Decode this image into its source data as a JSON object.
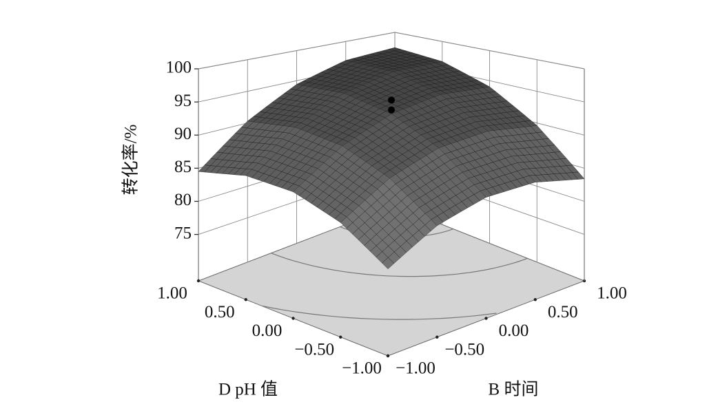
{
  "chart_data": {
    "type": "surface3d",
    "xlabel": "B 时间",
    "ylabel": "D pH 值",
    "zlabel": "转化率/%",
    "xlim": [
      -1,
      1
    ],
    "ylim": [
      -1,
      1
    ],
    "zlim": [
      68,
      100
    ],
    "xticks": [
      {
        "value": -1,
        "label": "−1.00"
      },
      {
        "value": -0.5,
        "label": "−0.50"
      },
      {
        "value": 0,
        "label": "0.00"
      },
      {
        "value": 0.5,
        "label": "0.50"
      },
      {
        "value": 1,
        "label": "1.00"
      }
    ],
    "yticks": [
      {
        "value": -1,
        "label": "−1.00"
      },
      {
        "value": -0.5,
        "label": "−0.50"
      },
      {
        "value": 0,
        "label": "0.00"
      },
      {
        "value": 0.5,
        "label": "0.50"
      },
      {
        "value": 1,
        "label": "1.00"
      }
    ],
    "zticks": [
      75,
      80,
      85,
      90,
      95,
      100
    ],
    "surface": {
      "x": [
        -1,
        -0.5,
        0,
        0.5,
        1
      ],
      "y": [
        -1,
        -0.5,
        0,
        0.5,
        1
      ],
      "z": [
        [
          79.1,
          82.8,
          84.75,
          84.95,
          83.4
        ],
        [
          83.2,
          87.4,
          89.9,
          90.6,
          89.6
        ],
        [
          85.5,
          90.2,
          93.2,
          94.5,
          94.0
        ],
        [
          85.9,
          91.2,
          94.7,
          96.5,
          96.5
        ],
        [
          84.5,
          90.3,
          94.4,
          96.7,
          97.2
        ]
      ]
    },
    "points": {
      "x": [
        0,
        0
      ],
      "y": [
        0,
        0
      ],
      "z": [
        95.3,
        93.8
      ]
    }
  }
}
